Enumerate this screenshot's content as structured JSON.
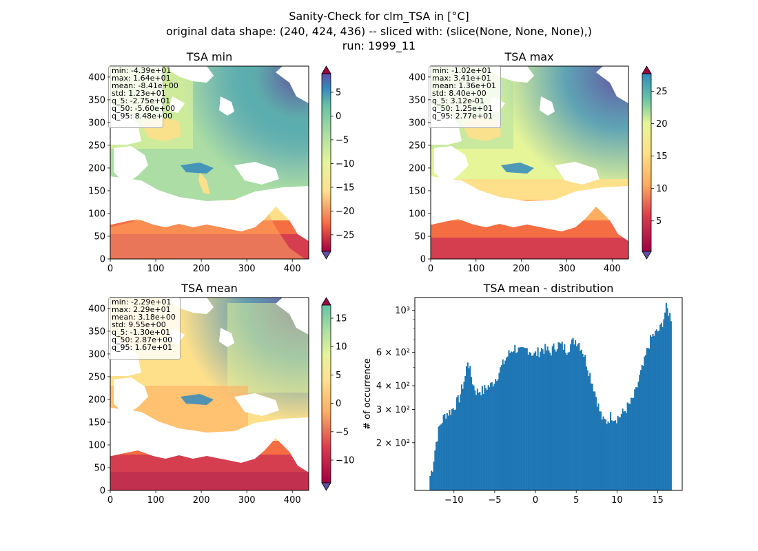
{
  "figure": {
    "title_lines": [
      "Sanity-Check for clm_TSA in [°C]",
      "original data shape: (240, 424, 436) -- sliced with: (slice(None, None, None),)",
      "run: 1999_11"
    ]
  },
  "chart_data": [
    {
      "type": "heatmap",
      "title": "TSA min",
      "colormap": "Spectral_r",
      "xlim": [
        0,
        436
      ],
      "ylim": [
        0,
        424
      ],
      "xticks": [
        "0",
        "100",
        "200",
        "300",
        "400"
      ],
      "yticks": [
        "0",
        "50",
        "100",
        "150",
        "200",
        "250",
        "300",
        "350",
        "400"
      ],
      "colorbar": {
        "range": [
          -28.5,
          8.9
        ],
        "ticks": [
          "−25",
          "−20",
          "−15",
          "−10",
          "−5",
          "0",
          "5"
        ],
        "extend": "both"
      },
      "stats": [
        "min: -4.39e+01",
        "max: 1.64e+01",
        "mean: -8.41e+00",
        "std: 1.23e+01",
        "q_5: -2.75e+01",
        "q_50: -5.60e+00",
        "q_95: 8.48e+00"
      ]
    },
    {
      "type": "heatmap",
      "title": "TSA max",
      "colormap": "Spectral_r",
      "xlim": [
        0,
        436
      ],
      "ylim": [
        0,
        424
      ],
      "xticks": [
        "0",
        "100",
        "200",
        "300",
        "400"
      ],
      "yticks": [
        "0",
        "50",
        "100",
        "150",
        "200",
        "250",
        "300",
        "350",
        "400"
      ],
      "colorbar": {
        "range": [
          0.3,
          27.7
        ],
        "ticks": [
          "5",
          "10",
          "15",
          "20",
          "25"
        ],
        "extend": "both"
      },
      "stats": [
        "min: -1.02e+01",
        "max: 3.41e+01",
        "mean: 1.36e+01",
        "std: 8.40e+00",
        "q_5: 3.12e-01",
        "q_50: 1.25e+01",
        "q_95: 2.77e+01"
      ]
    },
    {
      "type": "heatmap",
      "title": "TSA mean",
      "colormap": "Spectral_r",
      "xlim": [
        0,
        436
      ],
      "ylim": [
        0,
        424
      ],
      "xticks": [
        "0",
        "100",
        "200",
        "300",
        "400"
      ],
      "yticks": [
        "0",
        "50",
        "100",
        "150",
        "200",
        "250",
        "300",
        "350",
        "400"
      ],
      "colorbar": {
        "range": [
          -14,
          17.3
        ],
        "ticks": [
          "−10",
          "−5",
          "0",
          "5",
          "10",
          "15"
        ],
        "extend": "both"
      },
      "stats": [
        "min: -2.29e+01",
        "max: 2.29e+01",
        "mean: 3.18e+00",
        "std: 9.55e+00",
        "q_5: -1.30e+01",
        "q_50: 2.87e+00",
        "q_95: 1.67e+01"
      ]
    },
    {
      "type": "bar",
      "title": "TSA mean - distribution",
      "ylabel": "# of occurrence",
      "yscale": "log",
      "xlim": [
        -14.8,
        18.0
      ],
      "ylim": [
        112,
        1170
      ],
      "xticks": [
        -10,
        -5,
        0,
        5,
        10,
        15
      ],
      "xtick_labels": [
        "−10",
        "−5",
        "0",
        "5",
        "10",
        "15"
      ],
      "yticks": [
        200,
        300,
        400,
        600,
        1000
      ],
      "ytick_labels": [
        "2 × 10²",
        "3 × 10²",
        "4 × 10²",
        "6 × 10²",
        "10³"
      ],
      "color": "#1f77b4",
      "anchors": [
        [
          -13.0,
          130
        ],
        [
          -12.6,
          150
        ],
        [
          -12.2,
          200
        ],
        [
          -11.8,
          240
        ],
        [
          -11.4,
          265
        ],
        [
          -11.0,
          285
        ],
        [
          -10.6,
          290
        ],
        [
          -10.2,
          300
        ],
        [
          -9.8,
          320
        ],
        [
          -9.4,
          340
        ],
        [
          -9.0,
          390
        ],
        [
          -8.6,
          450
        ],
        [
          -8.3,
          555
        ],
        [
          -8.0,
          470
        ],
        [
          -7.6,
          400
        ],
        [
          -7.2,
          370
        ],
        [
          -6.8,
          380
        ],
        [
          -6.4,
          375
        ],
        [
          -6.0,
          395
        ],
        [
          -5.5,
          400
        ],
        [
          -5.0,
          430
        ],
        [
          -4.5,
          470
        ],
        [
          -4.0,
          520
        ],
        [
          -3.5,
          570
        ],
        [
          -3.0,
          610
        ],
        [
          -2.6,
          640
        ],
        [
          -2.2,
          620
        ],
        [
          -1.8,
          600
        ],
        [
          -1.4,
          610
        ],
        [
          -1.0,
          630
        ],
        [
          -0.6,
          610
        ],
        [
          -0.2,
          580
        ],
        [
          0.3,
          600
        ],
        [
          0.8,
          630
        ],
        [
          1.3,
          620
        ],
        [
          1.8,
          600
        ],
        [
          2.3,
          640
        ],
        [
          2.8,
          660
        ],
        [
          3.3,
          650
        ],
        [
          3.8,
          620
        ],
        [
          4.3,
          660
        ],
        [
          4.8,
          700
        ],
        [
          5.3,
          680
        ],
        [
          5.8,
          610
        ],
        [
          6.3,
          520
        ],
        [
          6.8,
          440
        ],
        [
          7.3,
          370
        ],
        [
          7.8,
          300
        ],
        [
          8.3,
          260
        ],
        [
          8.8,
          260
        ],
        [
          9.3,
          280
        ],
        [
          9.8,
          270
        ],
        [
          10.3,
          275
        ],
        [
          10.8,
          290
        ],
        [
          11.3,
          310
        ],
        [
          11.8,
          330
        ],
        [
          12.3,
          370
        ],
        [
          12.8,
          450
        ],
        [
          13.3,
          520
        ],
        [
          13.8,
          640
        ],
        [
          14.3,
          730
        ],
        [
          14.8,
          760
        ],
        [
          15.3,
          800
        ],
        [
          15.7,
          900
        ],
        [
          16.0,
          1030
        ],
        [
          16.3,
          990
        ],
        [
          16.6,
          920
        ]
      ]
    }
  ]
}
